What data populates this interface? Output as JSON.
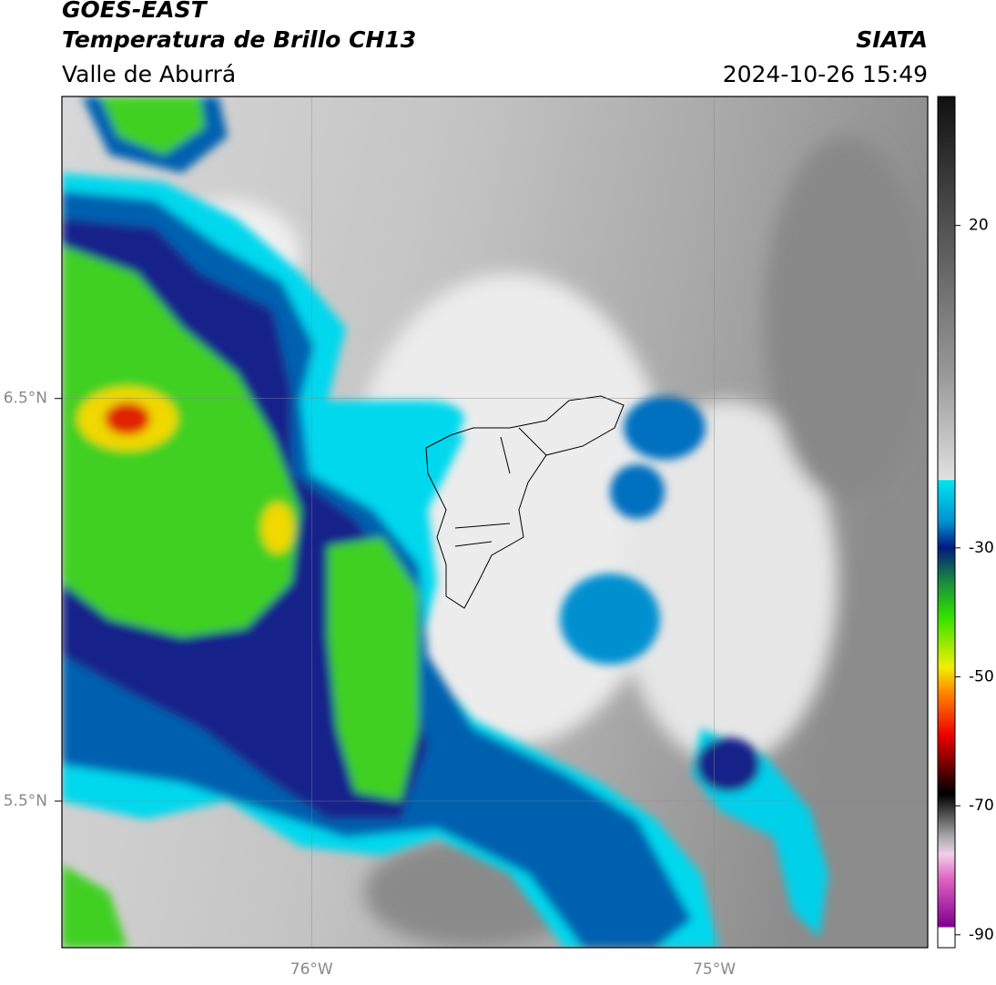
{
  "header": {
    "title": "GOES-EAST",
    "subtitle": "Temperatura de Brillo CH13",
    "region": "Valle de Aburrá",
    "source": "SIATA",
    "datetime": "2024-10-26 15:49"
  },
  "map": {
    "xlim": [
      -76.62,
      -74.47
    ],
    "ylim": [
      5.136,
      7.25
    ],
    "xticks": [
      {
        "value": -76,
        "label": "76°W"
      },
      {
        "value": -75,
        "label": "75°W"
      }
    ],
    "yticks": [
      {
        "value": 6.5,
        "label": "6.5°N"
      },
      {
        "value": 5.5,
        "label": "5.5°N"
      }
    ]
  },
  "colorbar": {
    "lim": [
      -92,
      40
    ],
    "ticks": [
      20,
      -30,
      -50,
      -70,
      -90
    ]
  }
}
